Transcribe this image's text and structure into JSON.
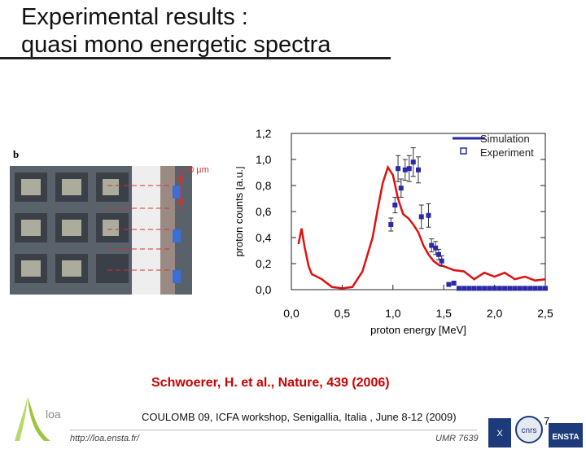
{
  "slide": {
    "title_line1": "Experimental results :",
    "title_line2": "quasi mono energetic spectra",
    "reference": "Schwoerer, H. et al., Nature, 439 (2006)",
    "conference": "COULOMB 09, ICFA workshop, Senigallia, Italia , June 8-12 (2009)",
    "url": "http://loa.ensta.fr/",
    "umr": "UMR 7639",
    "page_number": "7",
    "logo_text": "loa",
    "photo_label": "b",
    "scale_label": "20 µm",
    "right_logos": [
      "X",
      "cnrs",
      "ENSTA"
    ]
  },
  "colors": {
    "simulation": "#dd1111",
    "experiment": "#2a2aa8",
    "legend_line": "#2a2aa8",
    "reference": "#cc0000"
  },
  "chart_data": {
    "type": "scatter",
    "xlabel": "proton energy [MeV]",
    "ylabel": "proton counts [a.u.]",
    "xlim": [
      0,
      2.5
    ],
    "ylim": [
      0,
      1.2
    ],
    "xticks": [
      "0,0",
      "0,5",
      "1,0",
      "1,5",
      "2,0",
      "2,5"
    ],
    "xtick_values": [
      0,
      0.5,
      1.0,
      1.5,
      2.0,
      2.5
    ],
    "yticks": [
      "0,0",
      "0,2",
      "0,4",
      "0,6",
      "0,8",
      "1,0",
      "1,2"
    ],
    "ytick_values": [
      0,
      0.2,
      0.4,
      0.6,
      0.8,
      1.0,
      1.2
    ],
    "legend": {
      "position": "top-right",
      "entries": [
        "Simulation",
        "Experiment"
      ]
    },
    "series": [
      {
        "name": "Simulation",
        "kind": "line",
        "x": [
          0.07,
          0.1,
          0.13,
          0.17,
          0.2,
          0.3,
          0.4,
          0.5,
          0.6,
          0.7,
          0.8,
          0.85,
          0.9,
          0.95,
          1.0,
          1.05,
          1.1,
          1.15,
          1.2,
          1.25,
          1.3,
          1.35,
          1.4,
          1.45,
          1.5,
          1.6,
          1.7,
          1.8,
          1.9,
          2.0,
          2.1,
          2.2,
          2.3,
          2.4,
          2.5
        ],
        "y": [
          0.35,
          0.47,
          0.33,
          0.18,
          0.12,
          0.08,
          0.02,
          0.01,
          0.02,
          0.14,
          0.4,
          0.62,
          0.82,
          0.94,
          0.88,
          0.7,
          0.58,
          0.55,
          0.5,
          0.44,
          0.34,
          0.27,
          0.22,
          0.19,
          0.18,
          0.15,
          0.14,
          0.08,
          0.13,
          0.1,
          0.13,
          0.08,
          0.1,
          0.07,
          0.08
        ]
      },
      {
        "name": "Experiment",
        "kind": "points",
        "x": [
          0.98,
          1.02,
          1.05,
          1.08,
          1.12,
          1.16,
          1.2,
          1.25,
          1.28,
          1.35,
          1.38,
          1.42,
          1.45,
          1.48,
          1.55,
          1.6,
          1.65,
          1.7,
          1.75,
          1.8,
          1.85,
          1.9,
          1.95,
          2.0,
          2.05,
          2.1,
          2.15,
          2.2,
          2.25,
          2.3,
          2.35,
          2.4,
          2.45,
          2.5
        ],
        "y": [
          0.5,
          0.65,
          0.93,
          0.78,
          0.92,
          0.93,
          0.98,
          0.92,
          0.56,
          0.57,
          0.34,
          0.32,
          0.27,
          0.22,
          0.04,
          0.05,
          0.01,
          0.01,
          0.01,
          0.01,
          0.01,
          0.01,
          0.01,
          0.01,
          0.01,
          0.01,
          0.01,
          0.01,
          0.01,
          0.01,
          0.01,
          0.01,
          0.01,
          0.01
        ],
        "err": [
          0.05,
          0.06,
          0.1,
          0.07,
          0.08,
          0.1,
          0.11,
          0.1,
          0.09,
          0.09,
          0.05,
          0.05,
          0.04,
          0.04,
          0,
          0,
          0,
          0,
          0,
          0,
          0,
          0,
          0,
          0,
          0,
          0,
          0,
          0,
          0,
          0,
          0,
          0,
          0,
          0
        ]
      }
    ]
  }
}
